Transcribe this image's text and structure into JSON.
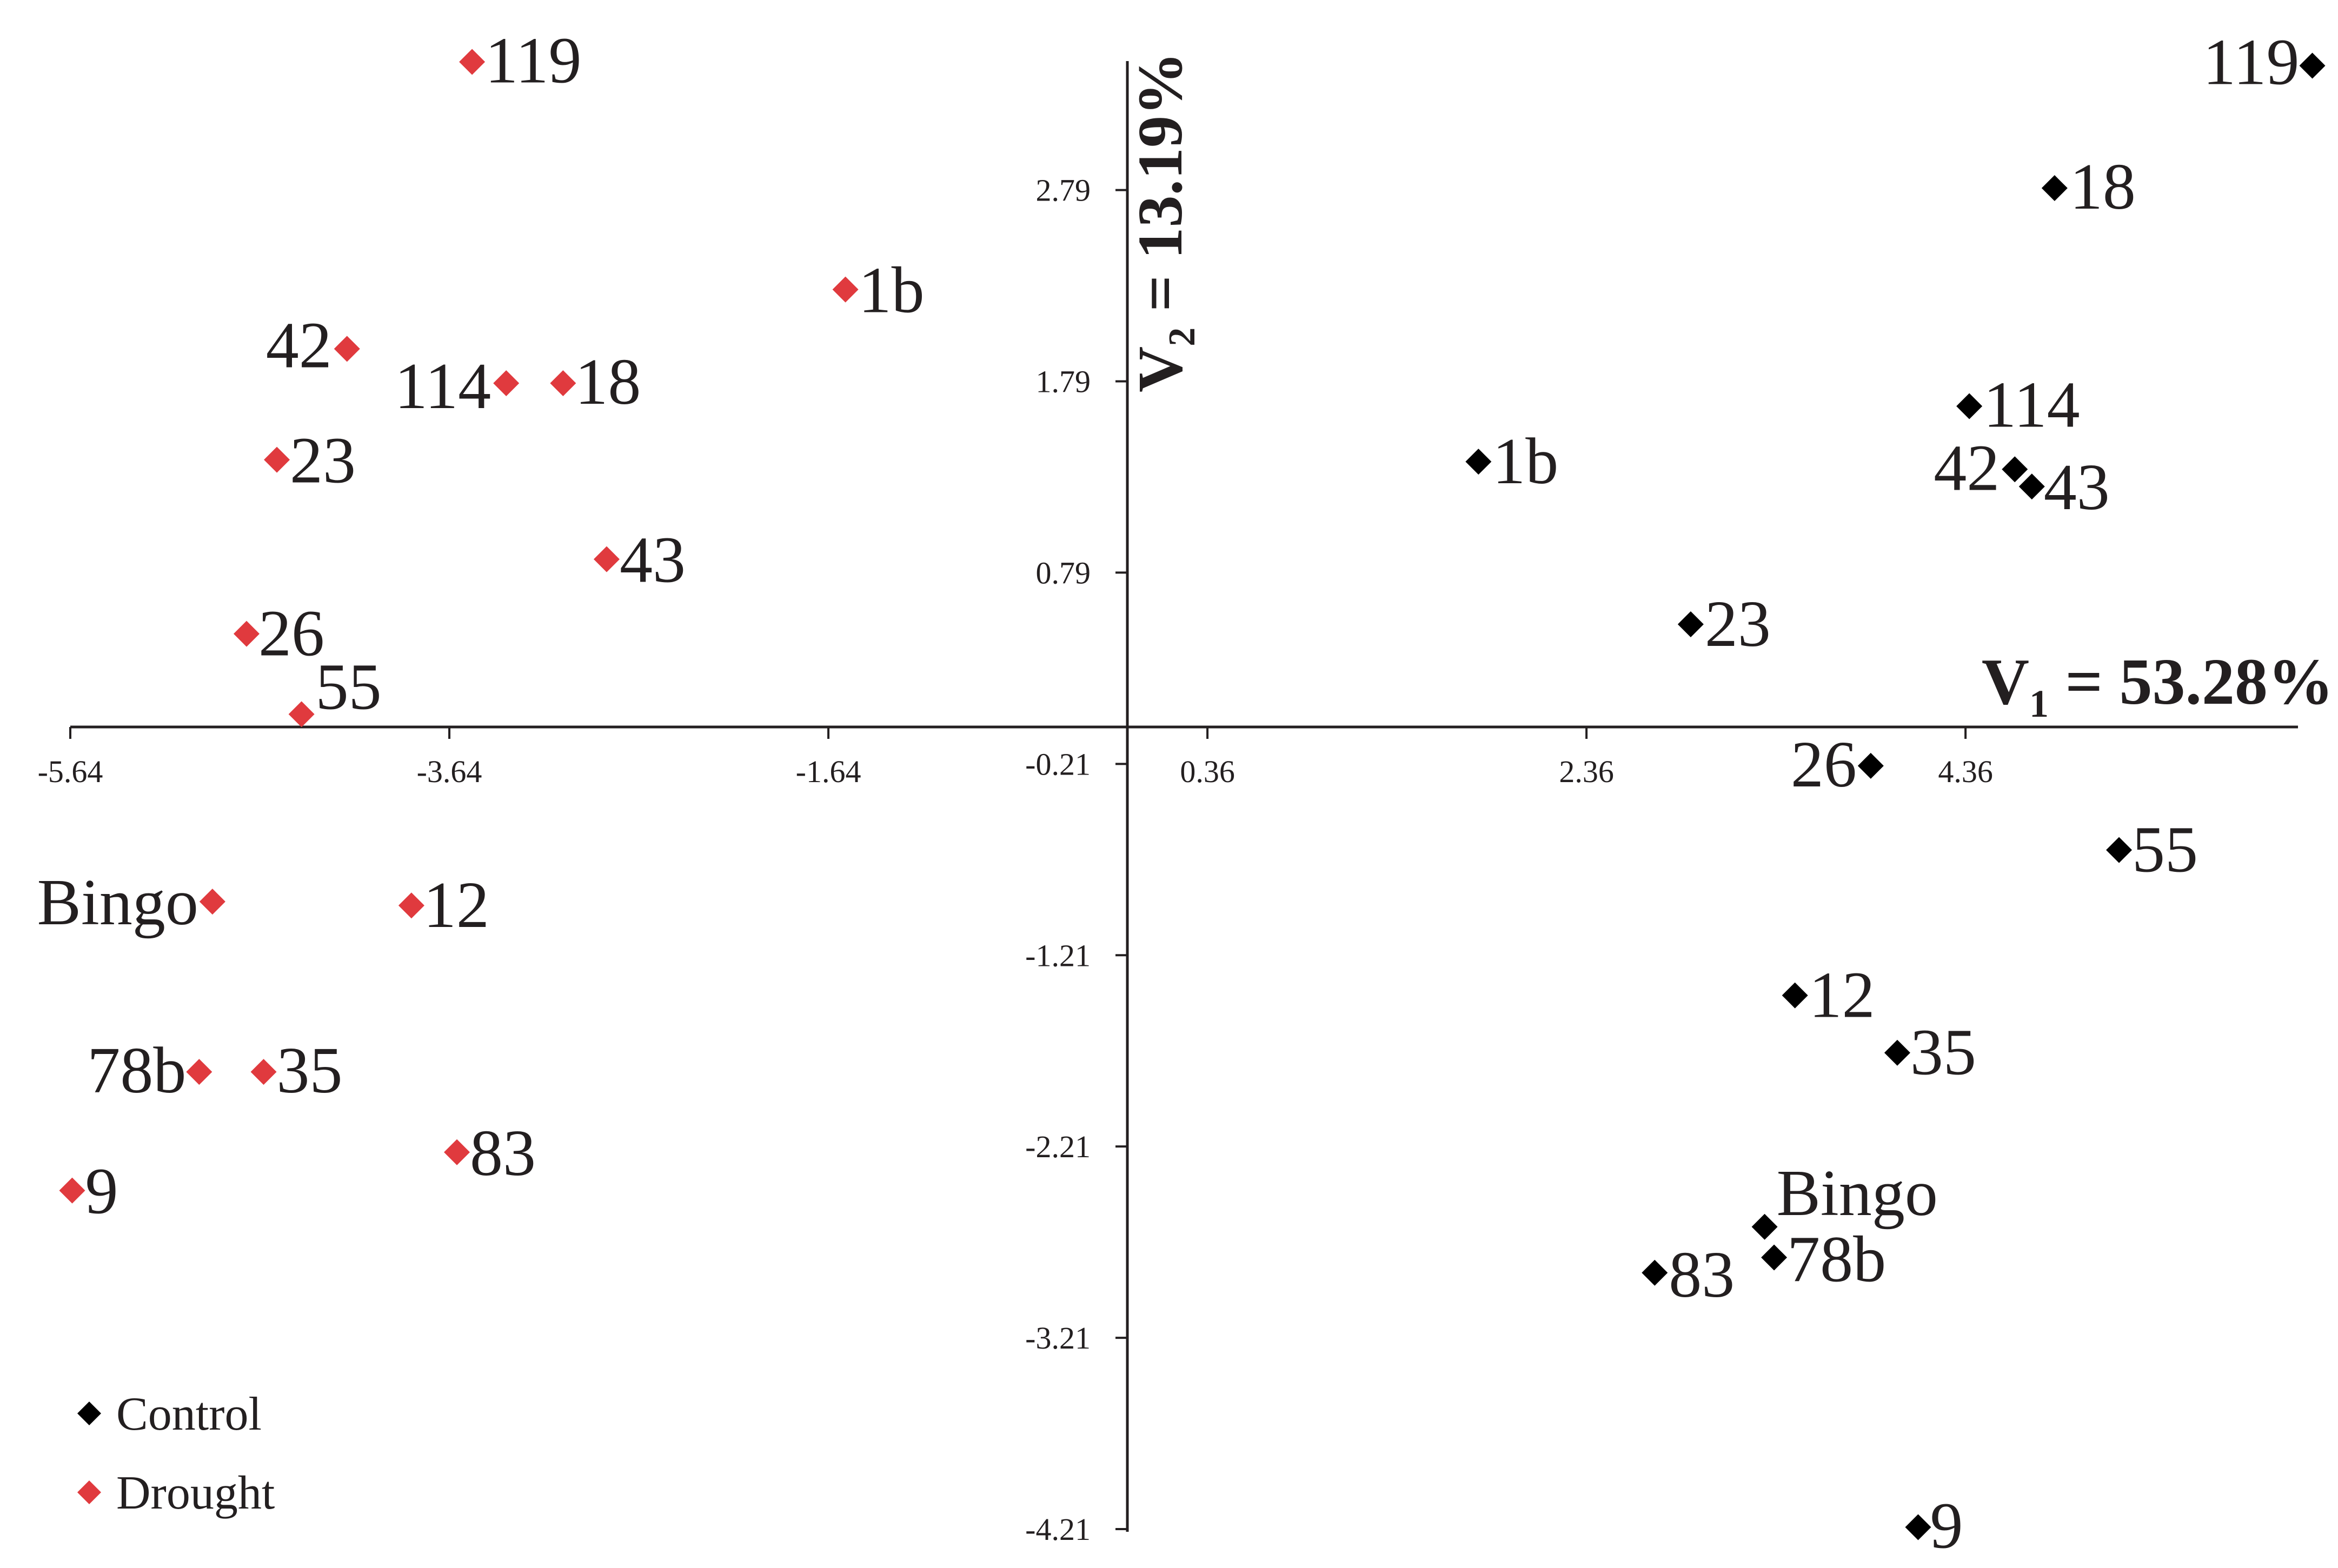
{
  "chart_data": {
    "type": "scatter",
    "xlim": [
      -5.64,
      6.1
    ],
    "ylim": [
      -4.21,
      3.45
    ],
    "x_ticks": [
      {
        "value": -5.64,
        "label": "-5.64"
      },
      {
        "value": -3.64,
        "label": "-3.64"
      },
      {
        "value": -1.64,
        "label": "-1.64"
      },
      {
        "value": 0.36,
        "label": "0.36"
      },
      {
        "value": 2.36,
        "label": "2.36"
      },
      {
        "value": 4.36,
        "label": "4.36"
      }
    ],
    "y_ticks": [
      {
        "value": 2.79,
        "label": "2.79"
      },
      {
        "value": 1.79,
        "label": "1.79"
      },
      {
        "value": 0.79,
        "label": "0.79"
      },
      {
        "value": -0.21,
        "label": "-0.21"
      },
      {
        "value": -1.21,
        "label": "-1.21"
      },
      {
        "value": -2.21,
        "label": "-2.21"
      },
      {
        "value": -3.21,
        "label": "-3.21"
      },
      {
        "value": -4.21,
        "label": "-4.21"
      }
    ],
    "xlabel": {
      "main": "V",
      "sub": "1",
      "rest": " = 53.28%"
    },
    "ylabel": {
      "main": "V",
      "sub": "2",
      "rest": " = 13.19%"
    },
    "grid": false,
    "legend": "bottom-left",
    "series": [
      {
        "name": "Control",
        "color": "#000000",
        "points": [
          {
            "label": "119",
            "x": 6.19,
            "y": 3.44
          },
          {
            "label": "18",
            "x": 4.83,
            "y": 2.8
          },
          {
            "label": "114",
            "x": 4.38,
            "y": 1.66
          },
          {
            "label": "42",
            "x": 4.62,
            "y": 1.33
          },
          {
            "label": "43",
            "x": 4.71,
            "y": 1.24
          },
          {
            "label": "1b",
            "x": 1.79,
            "y": 1.37
          },
          {
            "label": "23",
            "x": 2.91,
            "y": 0.52
          },
          {
            "label": "26",
            "x": 3.86,
            "y": -0.22
          },
          {
            "label": "55",
            "x": 5.17,
            "y": -0.66
          },
          {
            "label": "12",
            "x": 3.46,
            "y": -1.42
          },
          {
            "label": "35",
            "x": 4.0,
            "y": -1.72
          },
          {
            "label": "Bingo",
            "x": 3.3,
            "y": -2.63
          },
          {
            "label": "78b",
            "x": 3.35,
            "y": -2.79
          },
          {
            "label": "83",
            "x": 2.72,
            "y": -2.87
          },
          {
            "label": "9",
            "x": 4.11,
            "y": -4.2
          }
        ]
      },
      {
        "name": "Drought",
        "color": "#e03a3e",
        "points": [
          {
            "label": "119",
            "x": -3.52,
            "y": 3.46
          },
          {
            "label": "1b",
            "x": -1.55,
            "y": 2.27
          },
          {
            "label": "42",
            "x": -4.18,
            "y": 1.96
          },
          {
            "label": "114",
            "x": -3.34,
            "y": 1.78
          },
          {
            "label": "18",
            "x": -3.04,
            "y": 1.78
          },
          {
            "label": "23",
            "x": -4.55,
            "y": 1.38
          },
          {
            "label": "43",
            "x": -2.81,
            "y": 0.86
          },
          {
            "label": "26",
            "x": -4.71,
            "y": 0.47
          },
          {
            "label": "55",
            "x": -4.42,
            "y": 0.05
          },
          {
            "label": "Bingo",
            "x": -4.89,
            "y": -0.93
          },
          {
            "label": "12",
            "x": -3.84,
            "y": -0.95
          },
          {
            "label": "78b",
            "x": -4.96,
            "y": -1.82
          },
          {
            "label": "35",
            "x": -4.62,
            "y": -1.82
          },
          {
            "label": "83",
            "x": -3.6,
            "y": -2.24
          },
          {
            "label": "9",
            "x": -5.63,
            "y": -2.44
          }
        ]
      }
    ]
  }
}
